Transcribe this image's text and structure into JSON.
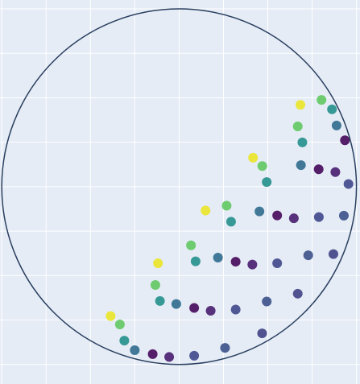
{
  "chart_data": {
    "type": "scatter",
    "x": [
      -0.386,
      -0.119,
      0.149,
      0.417,
      0.684,
      -0.334,
      -0.134,
      0.067,
      0.268,
      0.469,
      0.669,
      0.803,
      -0.309,
      -0.108,
      0.093,
      0.293,
      0.494,
      0.695,
      0.862,
      -0.25,
      -0.016,
      0.219,
      0.453,
      0.687,
      0.888,
      -0.149,
      0.085,
      0.319,
      0.553,
      0.787,
      0.935,
      -0.056,
      0.178,
      0.413,
      0.647,
      0.881,
      0.085,
      0.319,
      0.553,
      0.788,
      0.955,
      0.259,
      0.494,
      0.728,
      0.929,
      0.468,
      0.669,
      0.87
    ],
    "y": [
      -0.728,
      -0.431,
      -0.134,
      0.163,
      0.46,
      -0.775,
      -0.553,
      -0.33,
      -0.107,
      0.116,
      0.339,
      0.488,
      -0.866,
      -0.643,
      -0.42,
      -0.197,
      0.026,
      0.249,
      0.435,
      -0.92,
      -0.66,
      -0.399,
      -0.139,
      0.121,
      0.344,
      -0.942,
      -0.682,
      -0.422,
      -0.162,
      0.098,
      0.261,
      -0.958,
      -0.698,
      -0.438,
      -0.178,
      0.082,
      -0.951,
      -0.691,
      -0.431,
      -0.171,
      0.015,
      -0.907,
      -0.646,
      -0.386,
      -0.163,
      -0.825,
      -0.602,
      -0.379
    ],
    "marker_color": [
      0.97,
      0.97,
      0.97,
      0.97,
      0.97,
      0.75,
      0.75,
      0.75,
      0.75,
      0.75,
      0.75,
      0.75,
      0.5,
      0.5,
      0.5,
      0.5,
      0.5,
      0.5,
      0.5,
      0.35,
      0.35,
      0.35,
      0.35,
      0.35,
      0.35,
      0.02,
      0.02,
      0.02,
      0.02,
      0.02,
      0.02,
      0.08,
      0.08,
      0.08,
      0.08,
      0.08,
      0.22,
      0.22,
      0.22,
      0.22,
      0.22,
      0.25,
      0.25,
      0.25,
      0.25,
      0.2,
      0.2,
      0.2
    ],
    "colorscale": [
      "#440154",
      "#482878",
      "#3e4989",
      "#31688e",
      "#26828e",
      "#1f9e89",
      "#35b779",
      "#6ece58",
      "#b5de2b",
      "#fde725"
    ],
    "cmin": 0,
    "cmax": 1,
    "shapes": [
      {
        "type": "circle",
        "x0": -1,
        "x1": 1,
        "y0": -1,
        "y1": 1,
        "color": "#2a3f5f"
      }
    ],
    "xlim": [
      -1.01,
      1.02
    ],
    "ylim": [
      -1.11,
      1.05
    ],
    "xticks": [
      -1,
      -0.75,
      -0.5,
      -0.25,
      0,
      0.25,
      0.5,
      0.75,
      1
    ],
    "yticks": [
      -1,
      -0.75,
      -0.5,
      -0.25,
      0,
      0.25,
      0.5,
      0.75,
      1
    ],
    "grid": true,
    "background": "#e5ecf6"
  }
}
